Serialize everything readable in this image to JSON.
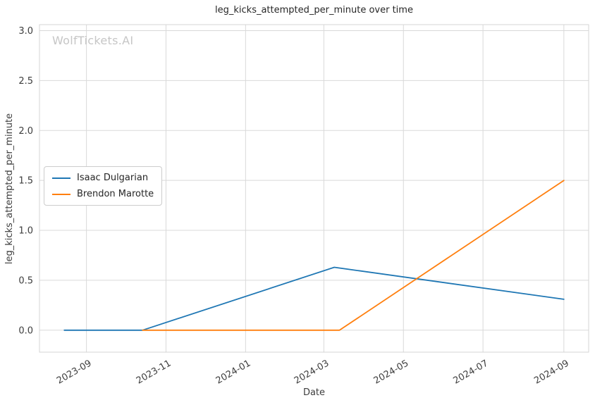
{
  "chart_data": {
    "type": "line",
    "title": "leg_kicks_attempted_per_minute over time",
    "xlabel": "Date",
    "ylabel": "leg_kicks_attempted_per_minute",
    "watermark": "WolfTickets.AI",
    "x_ticks": [
      "2023-09",
      "2023-11",
      "2024-01",
      "2024-03",
      "2024-05",
      "2024-07",
      "2024-09"
    ],
    "y_ticks": [
      0.0,
      0.5,
      1.0,
      1.5,
      2.0,
      2.5,
      3.0
    ],
    "xlim": [
      "2023-07-27",
      "2024-09-20"
    ],
    "ylim": [
      -0.22,
      3.06
    ],
    "grid": true,
    "legend_position": "center left",
    "series": [
      {
        "name": "Isaac Dulgarian",
        "color": "#1f77b4",
        "points": [
          {
            "x": "2023-08-15",
            "y": 0.0
          },
          {
            "x": "2023-10-14",
            "y": 0.0
          },
          {
            "x": "2024-03-09",
            "y": 0.63
          },
          {
            "x": "2024-09-01",
            "y": 0.31
          }
        ]
      },
      {
        "name": "Brendon Marotte",
        "color": "#ff7f0e",
        "points": [
          {
            "x": "2023-10-14",
            "y": 0.0
          },
          {
            "x": "2024-03-13",
            "y": 0.0
          },
          {
            "x": "2024-09-01",
            "y": 1.5
          }
        ]
      }
    ]
  }
}
